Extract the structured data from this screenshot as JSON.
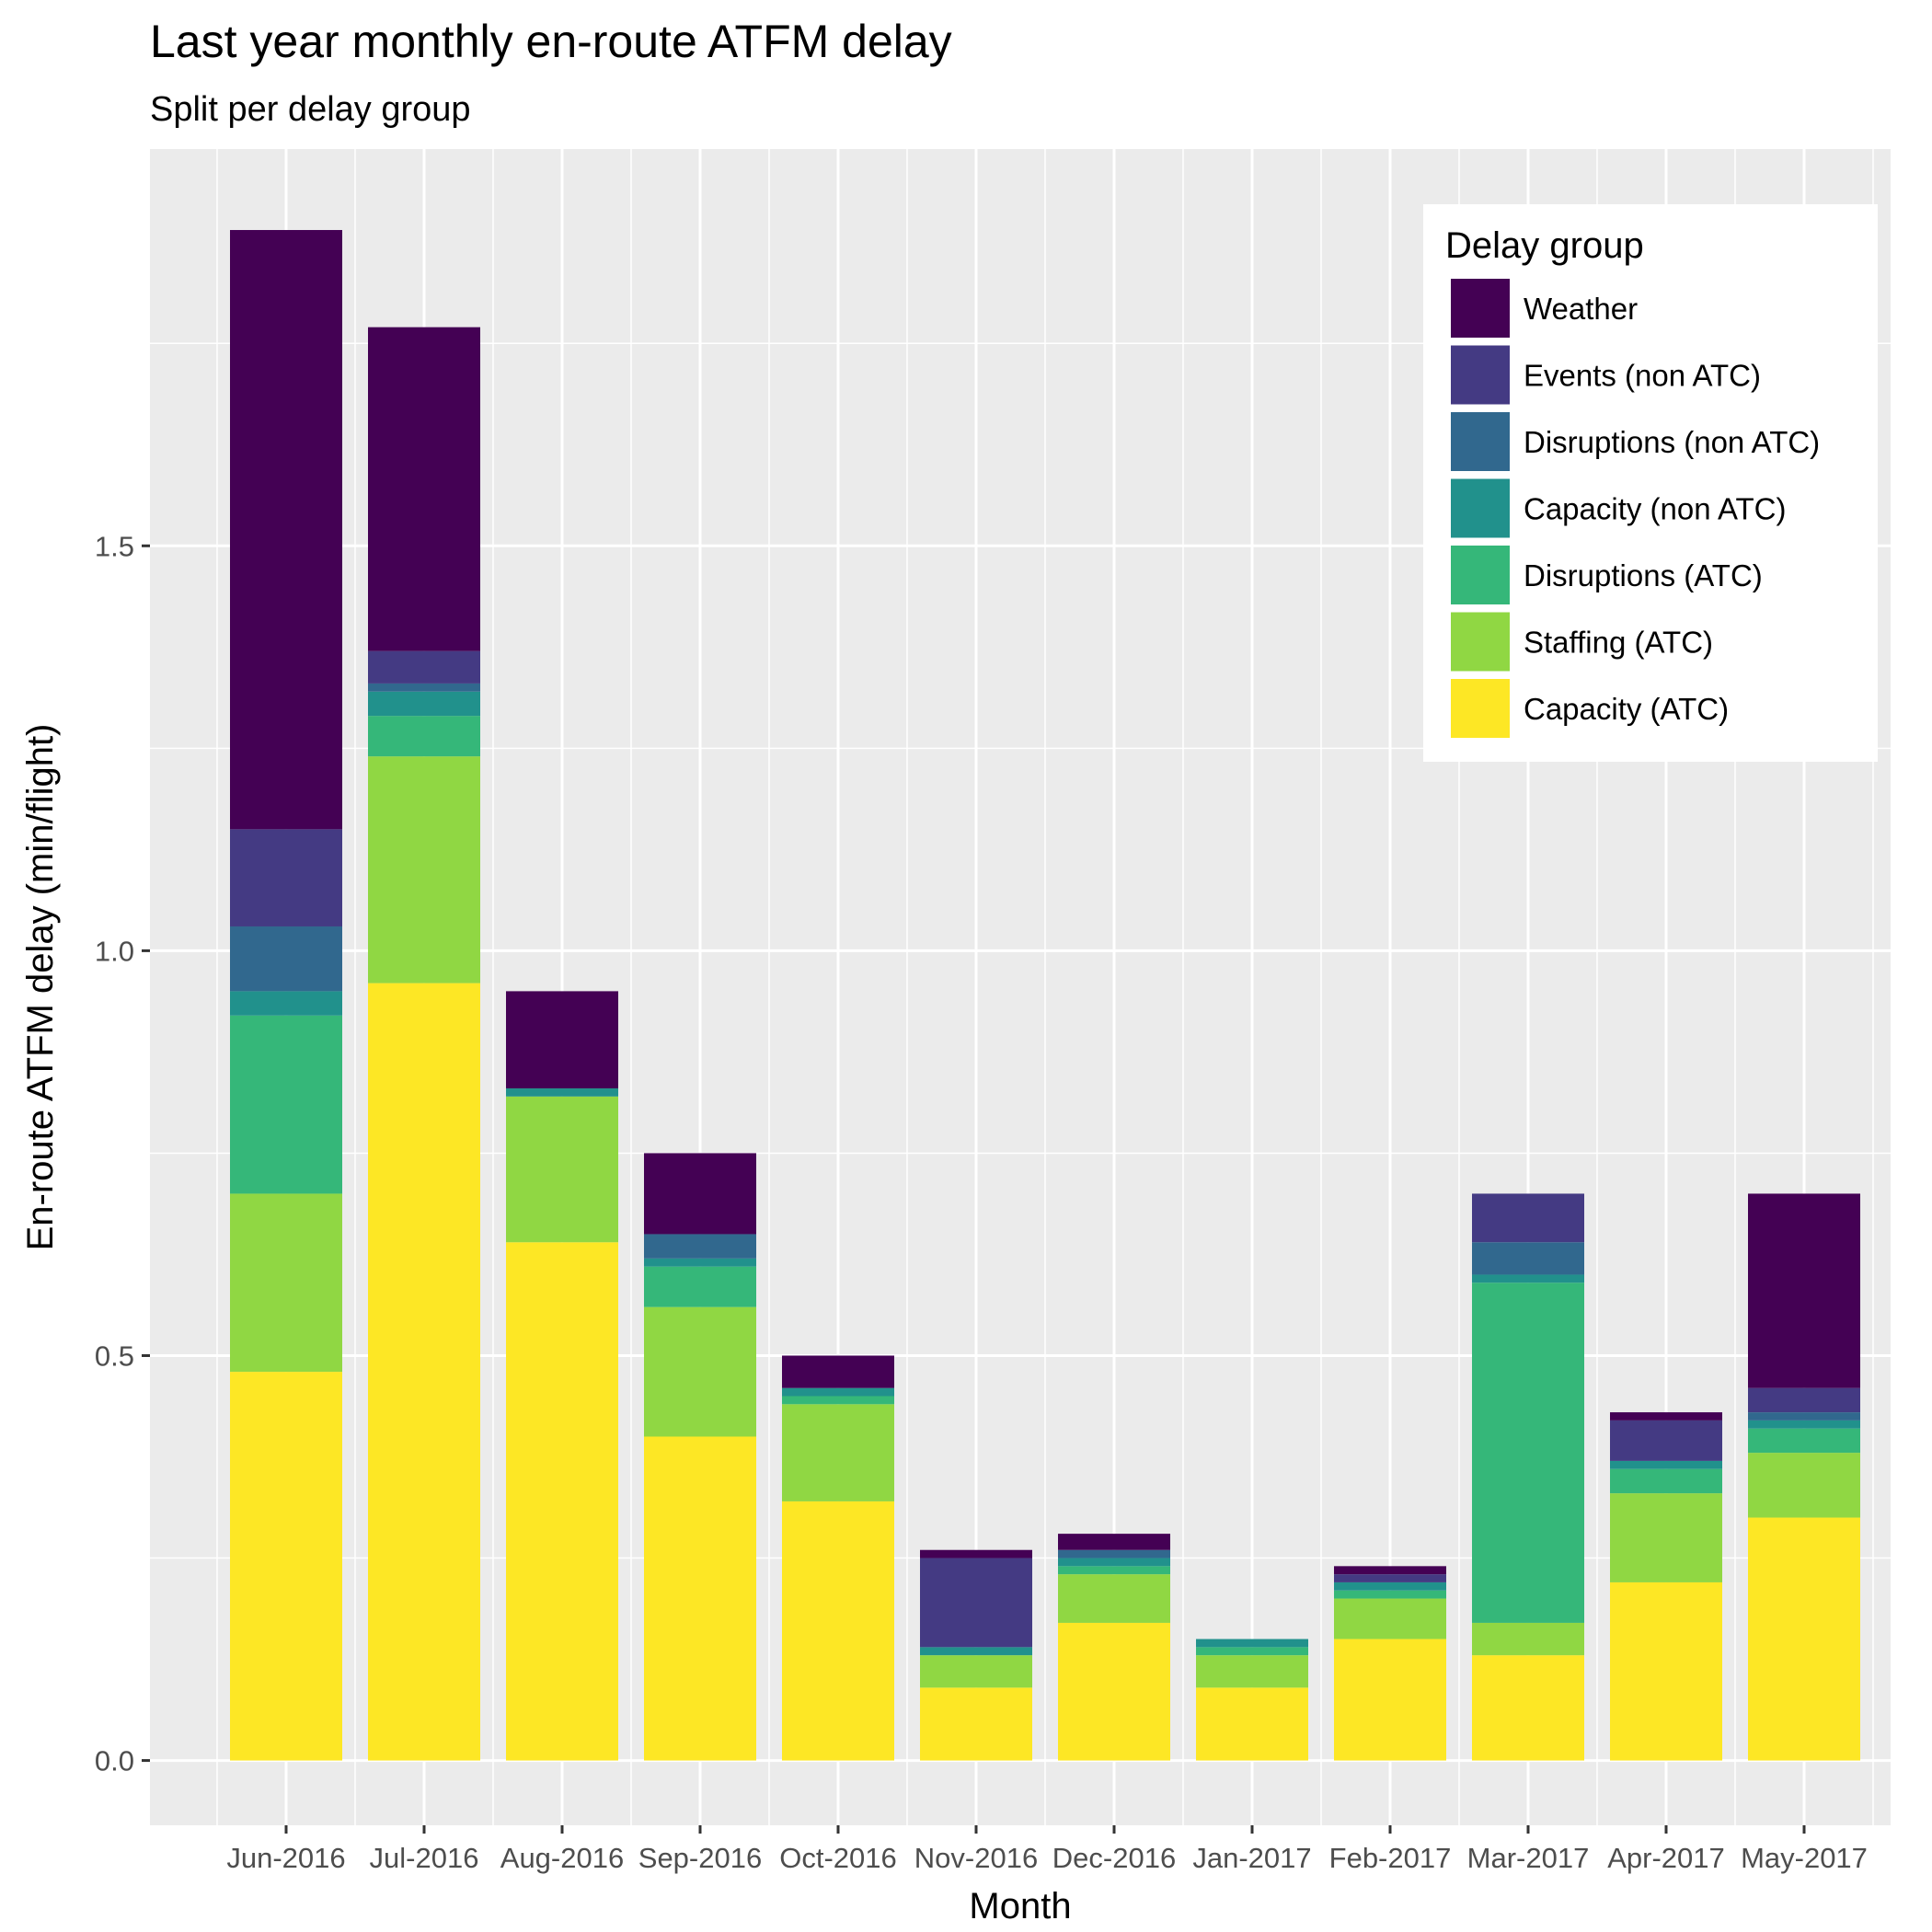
{
  "chart_data": {
    "type": "bar",
    "stacked": true,
    "title": "Last year monthly en-route ATFM delay",
    "subtitle": "Split per delay group",
    "xlabel": "Month",
    "ylabel": "En-route ATFM delay (min/flight)",
    "ylim": [
      -0.08,
      1.99
    ],
    "yticks": [
      "0.0",
      "0.5",
      "1.0",
      "1.5"
    ],
    "grid": true,
    "legend_position": "top-right",
    "legend_title": "Delay group",
    "categories": [
      "Jun-2016",
      "Jul-2016",
      "Aug-2016",
      "Sep-2016",
      "Oct-2016",
      "Nov-2016",
      "Dec-2016",
      "Jan-2017",
      "Feb-2017",
      "Mar-2017",
      "Apr-2017",
      "May-2017"
    ],
    "series": [
      {
        "name": "Capacity (ATC)",
        "color": "#fde725",
        "values": [
          0.48,
          0.96,
          0.64,
          0.4,
          0.32,
          0.09,
          0.17,
          0.09,
          0.15,
          0.13,
          0.22,
          0.3
        ]
      },
      {
        "name": "Staffing (ATC)",
        "color": "#90d743",
        "values": [
          0.22,
          0.28,
          0.18,
          0.16,
          0.12,
          0.04,
          0.06,
          0.04,
          0.05,
          0.04,
          0.11,
          0.08
        ]
      },
      {
        "name": "Disruptions (ATC)",
        "color": "#35b779",
        "values": [
          0.22,
          0.05,
          0.0,
          0.05,
          0.01,
          0.0,
          0.01,
          0.01,
          0.01,
          0.42,
          0.03,
          0.03
        ]
      },
      {
        "name": "Capacity (non ATC)",
        "color": "#21918c",
        "values": [
          0.03,
          0.03,
          0.01,
          0.01,
          0.01,
          0.01,
          0.01,
          0.01,
          0.01,
          0.01,
          0.01,
          0.01
        ]
      },
      {
        "name": "Disruptions (non ATC)",
        "color": "#31688e",
        "values": [
          0.08,
          0.01,
          0.0,
          0.03,
          0.0,
          0.0,
          0.01,
          0.0,
          0.0,
          0.04,
          0.0,
          0.01
        ]
      },
      {
        "name": "Events (non ATC)",
        "color": "#443a83",
        "values": [
          0.12,
          0.04,
          0.0,
          0.0,
          0.0,
          0.11,
          0.0,
          0.0,
          0.01,
          0.06,
          0.05,
          0.03
        ]
      },
      {
        "name": "Weather",
        "color": "#440154",
        "values": [
          0.74,
          0.4,
          0.12,
          0.1,
          0.04,
          0.01,
          0.02,
          0.0,
          0.01,
          0.0,
          0.01,
          0.24
        ]
      }
    ],
    "legend_order": [
      "Weather",
      "Events (non ATC)",
      "Disruptions (non ATC)",
      "Capacity (non ATC)",
      "Disruptions (ATC)",
      "Staffing (ATC)",
      "Capacity (ATC)"
    ]
  }
}
